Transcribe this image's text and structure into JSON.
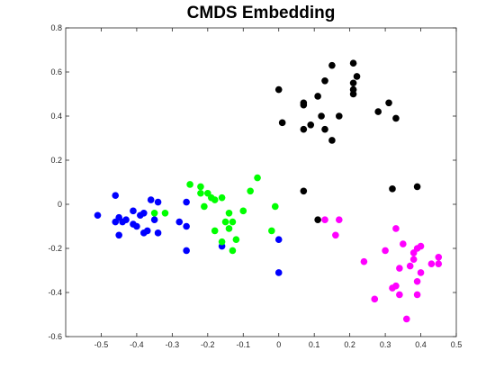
{
  "chart_data": {
    "type": "scatter",
    "title": "CMDS Embedding",
    "xlabel": "",
    "ylabel": "",
    "xlim": [
      -0.6,
      0.5
    ],
    "ylim": [
      -0.6,
      0.8
    ],
    "xticks": [
      -0.5,
      -0.4,
      -0.3,
      -0.2,
      -0.1,
      0,
      0.1,
      0.2,
      0.3,
      0.4,
      0.5
    ],
    "yticks": [
      -0.6,
      -0.4,
      -0.2,
      0,
      0.2,
      0.4,
      0.6,
      0.8
    ],
    "xtick_labels": [
      "-0.5",
      "-0.4",
      "-0.3",
      "-0.2",
      "-0.1",
      "0",
      "0.1",
      "0.2",
      "0.3",
      "0.4",
      "0.5"
    ],
    "ytick_labels": [
      "-0.6",
      "-0.4",
      "-0.2",
      "0",
      "0.2",
      "0.4",
      "0.6",
      "0.8"
    ],
    "grid": false,
    "legend": "none",
    "series": [
      {
        "color": "#0000ff",
        "points": [
          [
            -0.51,
            -0.05
          ],
          [
            -0.46,
            0.04
          ],
          [
            -0.46,
            -0.08
          ],
          [
            -0.45,
            -0.06
          ],
          [
            -0.44,
            -0.08
          ],
          [
            -0.43,
            -0.07
          ],
          [
            -0.45,
            -0.14
          ],
          [
            -0.41,
            -0.09
          ],
          [
            -0.41,
            -0.03
          ],
          [
            -0.4,
            -0.1
          ],
          [
            -0.39,
            -0.05
          ],
          [
            -0.38,
            -0.04
          ],
          [
            -0.38,
            -0.13
          ],
          [
            -0.37,
            -0.12
          ],
          [
            -0.36,
            0.02
          ],
          [
            -0.35,
            -0.07
          ],
          [
            -0.34,
            0.01
          ],
          [
            -0.34,
            -0.13
          ],
          [
            -0.28,
            -0.08
          ],
          [
            -0.26,
            -0.1
          ],
          [
            -0.26,
            0.01
          ],
          [
            -0.26,
            -0.21
          ],
          [
            -0.16,
            -0.19
          ],
          [
            0.0,
            -0.16
          ],
          [
            0.0,
            -0.31
          ]
        ]
      },
      {
        "color": "#00ff00",
        "points": [
          [
            -0.35,
            -0.04
          ],
          [
            -0.32,
            -0.04
          ],
          [
            -0.25,
            0.09
          ],
          [
            -0.22,
            0.08
          ],
          [
            -0.22,
            0.05
          ],
          [
            -0.21,
            -0.01
          ],
          [
            -0.2,
            0.05
          ],
          [
            -0.19,
            0.03
          ],
          [
            -0.18,
            -0.12
          ],
          [
            -0.18,
            0.02
          ],
          [
            -0.16,
            0.03
          ],
          [
            -0.16,
            -0.17
          ],
          [
            -0.15,
            -0.08
          ],
          [
            -0.14,
            -0.04
          ],
          [
            -0.14,
            -0.11
          ],
          [
            -0.13,
            -0.08
          ],
          [
            -0.13,
            -0.21
          ],
          [
            -0.12,
            -0.16
          ],
          [
            -0.1,
            -0.03
          ],
          [
            -0.08,
            0.06
          ],
          [
            -0.06,
            0.12
          ],
          [
            -0.02,
            -0.12
          ],
          [
            -0.01,
            -0.01
          ]
        ]
      },
      {
        "color": "#000000",
        "points": [
          [
            0.0,
            0.52
          ],
          [
            0.01,
            0.37
          ],
          [
            0.07,
            0.34
          ],
          [
            0.07,
            0.45
          ],
          [
            0.07,
            0.46
          ],
          [
            0.09,
            0.36
          ],
          [
            0.11,
            0.49
          ],
          [
            0.12,
            0.4
          ],
          [
            0.13,
            0.34
          ],
          [
            0.13,
            0.56
          ],
          [
            0.15,
            0.29
          ],
          [
            0.15,
            0.63
          ],
          [
            0.17,
            0.4
          ],
          [
            0.21,
            0.64
          ],
          [
            0.21,
            0.5
          ],
          [
            0.21,
            0.52
          ],
          [
            0.21,
            0.55
          ],
          [
            0.22,
            0.58
          ],
          [
            0.28,
            0.42
          ],
          [
            0.31,
            0.46
          ],
          [
            0.33,
            0.39
          ],
          [
            0.32,
            0.07
          ],
          [
            0.39,
            0.08
          ],
          [
            0.11,
            -0.07
          ],
          [
            0.07,
            0.06
          ]
        ]
      },
      {
        "color": "#ff00ff",
        "points": [
          [
            0.13,
            -0.07
          ],
          [
            0.16,
            -0.14
          ],
          [
            0.17,
            -0.07
          ],
          [
            0.24,
            -0.26
          ],
          [
            0.27,
            -0.43
          ],
          [
            0.3,
            -0.21
          ],
          [
            0.32,
            -0.38
          ],
          [
            0.33,
            -0.11
          ],
          [
            0.33,
            -0.37
          ],
          [
            0.34,
            -0.41
          ],
          [
            0.34,
            -0.29
          ],
          [
            0.35,
            -0.18
          ],
          [
            0.36,
            -0.52
          ],
          [
            0.37,
            -0.28
          ],
          [
            0.38,
            -0.22
          ],
          [
            0.38,
            -0.25
          ],
          [
            0.39,
            -0.2
          ],
          [
            0.39,
            -0.35
          ],
          [
            0.39,
            -0.41
          ],
          [
            0.4,
            -0.19
          ],
          [
            0.4,
            -0.31
          ],
          [
            0.43,
            -0.27
          ],
          [
            0.45,
            -0.27
          ],
          [
            0.45,
            -0.24
          ]
        ]
      }
    ]
  }
}
